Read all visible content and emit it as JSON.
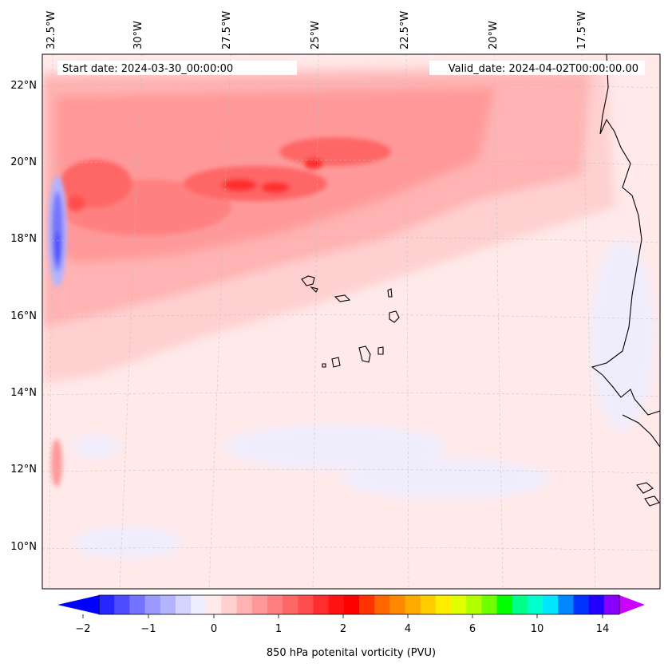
{
  "map": {
    "start_date_label": "Start date: 2024-03-30_00:00:00",
    "valid_date_label": "Valid_date: 2024-04-02T00:00:00.00",
    "longitude_labels": [
      "32.5°W",
      "30°W",
      "27.5°W",
      "25°W",
      "22.5°W",
      "20°W",
      "17.5°W"
    ],
    "latitude_labels": [
      "22°N",
      "20°N",
      "18°N",
      "16°N",
      "14°N",
      "12°N",
      "10°N"
    ],
    "extent": {
      "lon_min": -32.8,
      "lon_max": -15.6,
      "lat_min": 8.9,
      "lat_max": 22.8
    }
  },
  "colorbar": {
    "title": "850 hPa potenital vorticity (PVU)",
    "tick_labels": [
      "−2",
      "−1",
      "0",
      "1",
      "2",
      "4",
      "6",
      "10",
      "14"
    ],
    "colors": [
      "#0000ff",
      "#2626ff",
      "#4d4dff",
      "#7373ff",
      "#9999ff",
      "#b3b3ff",
      "#d4d4ff",
      "#eeeeff",
      "#ffe9e9",
      "#ffd0d0",
      "#ffb3b3",
      "#ff9999",
      "#ff8080",
      "#ff6666",
      "#ff4d4d",
      "#ff2e2e",
      "#ff1212",
      "#ff0000",
      "#ff3300",
      "#ff6600",
      "#ff8800",
      "#ffaa00",
      "#ffcc00",
      "#ffee00",
      "#e0ff00",
      "#b0ff00",
      "#70ff00",
      "#00ff00",
      "#00ff88",
      "#00ffcc",
      "#00e6ff",
      "#0088ff",
      "#0033ff",
      "#2200ff",
      "#8800ff",
      "#cc00ff"
    ]
  }
}
